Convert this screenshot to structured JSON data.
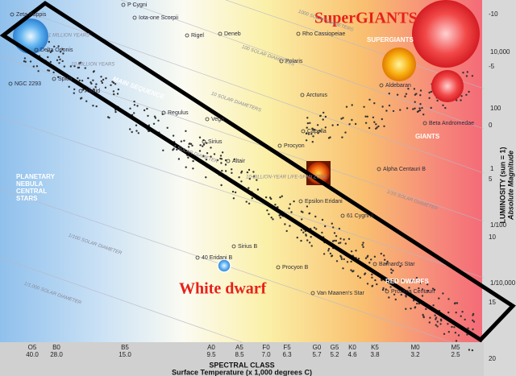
{
  "stars": [
    "Zeta Puppis",
    "P Cygni",
    "Iota-one Scorpii",
    "Rigel",
    "Deneb",
    "Rho Cassiopeiae",
    "Delta Orionis",
    "Polaris",
    "Spica",
    "NGC 2293",
    "Alkaid",
    "Regulus",
    "Vega",
    "Sirius",
    "Altair",
    "Arcturus",
    "Capella",
    "Procyon",
    "Aldebaran",
    "Beta Andromedae",
    "Alpha Centauri B",
    "Epsilon Eridani",
    "61 Cygni A",
    "Sirius B",
    "40 Eridani B",
    "Procyon B",
    "Van Maanen's Star",
    "Barnard's Star",
    "Proxima Centauri"
  ],
  "regions": {
    "supergiants_title": "SuperGIANTS",
    "supergiants": "SUPERGIANTS",
    "giants": "GIANTS",
    "main_sequence": "MAIN SEQUENCE",
    "planetary_nebula": [
      "PLANETARY",
      "NEBULA",
      "CENTRAL",
      "STARS"
    ],
    "white_dwarf_title": "White dwarf",
    "red_dwarfs": "RED DWARFS"
  },
  "diameters": [
    "1000 SOLAR DIAMETERS",
    "100 SOLAR DIAMETERS",
    "10 SOLAR DIAMETERS",
    "1 SOLAR DIAMETER",
    "1/10 SOLAR DIAMETER",
    "1/100 SOLAR DIAMETER",
    "1/1,000 SOLAR DIAMETER"
  ],
  "lifetimes": [
    "1 MILLION YEARS",
    "10 MILLION YEARS",
    "10-BILLION-YEAR LIFE-SPAN ZONE"
  ],
  "bottom_axis": {
    "classes": [
      "O5",
      "B0",
      "B5",
      "A0",
      "A5",
      "F0",
      "F5",
      "G0",
      "G5",
      "K0",
      "K5",
      "M0",
      "M5"
    ],
    "temperatures": [
      "40.0",
      "28.0",
      "15.0",
      "9.5",
      "8.5",
      "7.0",
      "6.3",
      "5.7",
      "5.2",
      "4.6",
      "3.8",
      "3.2",
      "2.5"
    ],
    "title": "SPECTRAL CLASS",
    "subtitle": "Surface Temperature (x 1,000 degrees C)"
  },
  "right_axis": {
    "luminosity": [
      "10,000",
      "100",
      "1",
      "1/100",
      "1/10,000"
    ],
    "magnitude": [
      "-10",
      "-5",
      "0",
      "5",
      "10",
      "15",
      "20"
    ],
    "title": "LUMINOSITY (sun = 1)",
    "subtitle": "Absolute Magnitude"
  }
}
